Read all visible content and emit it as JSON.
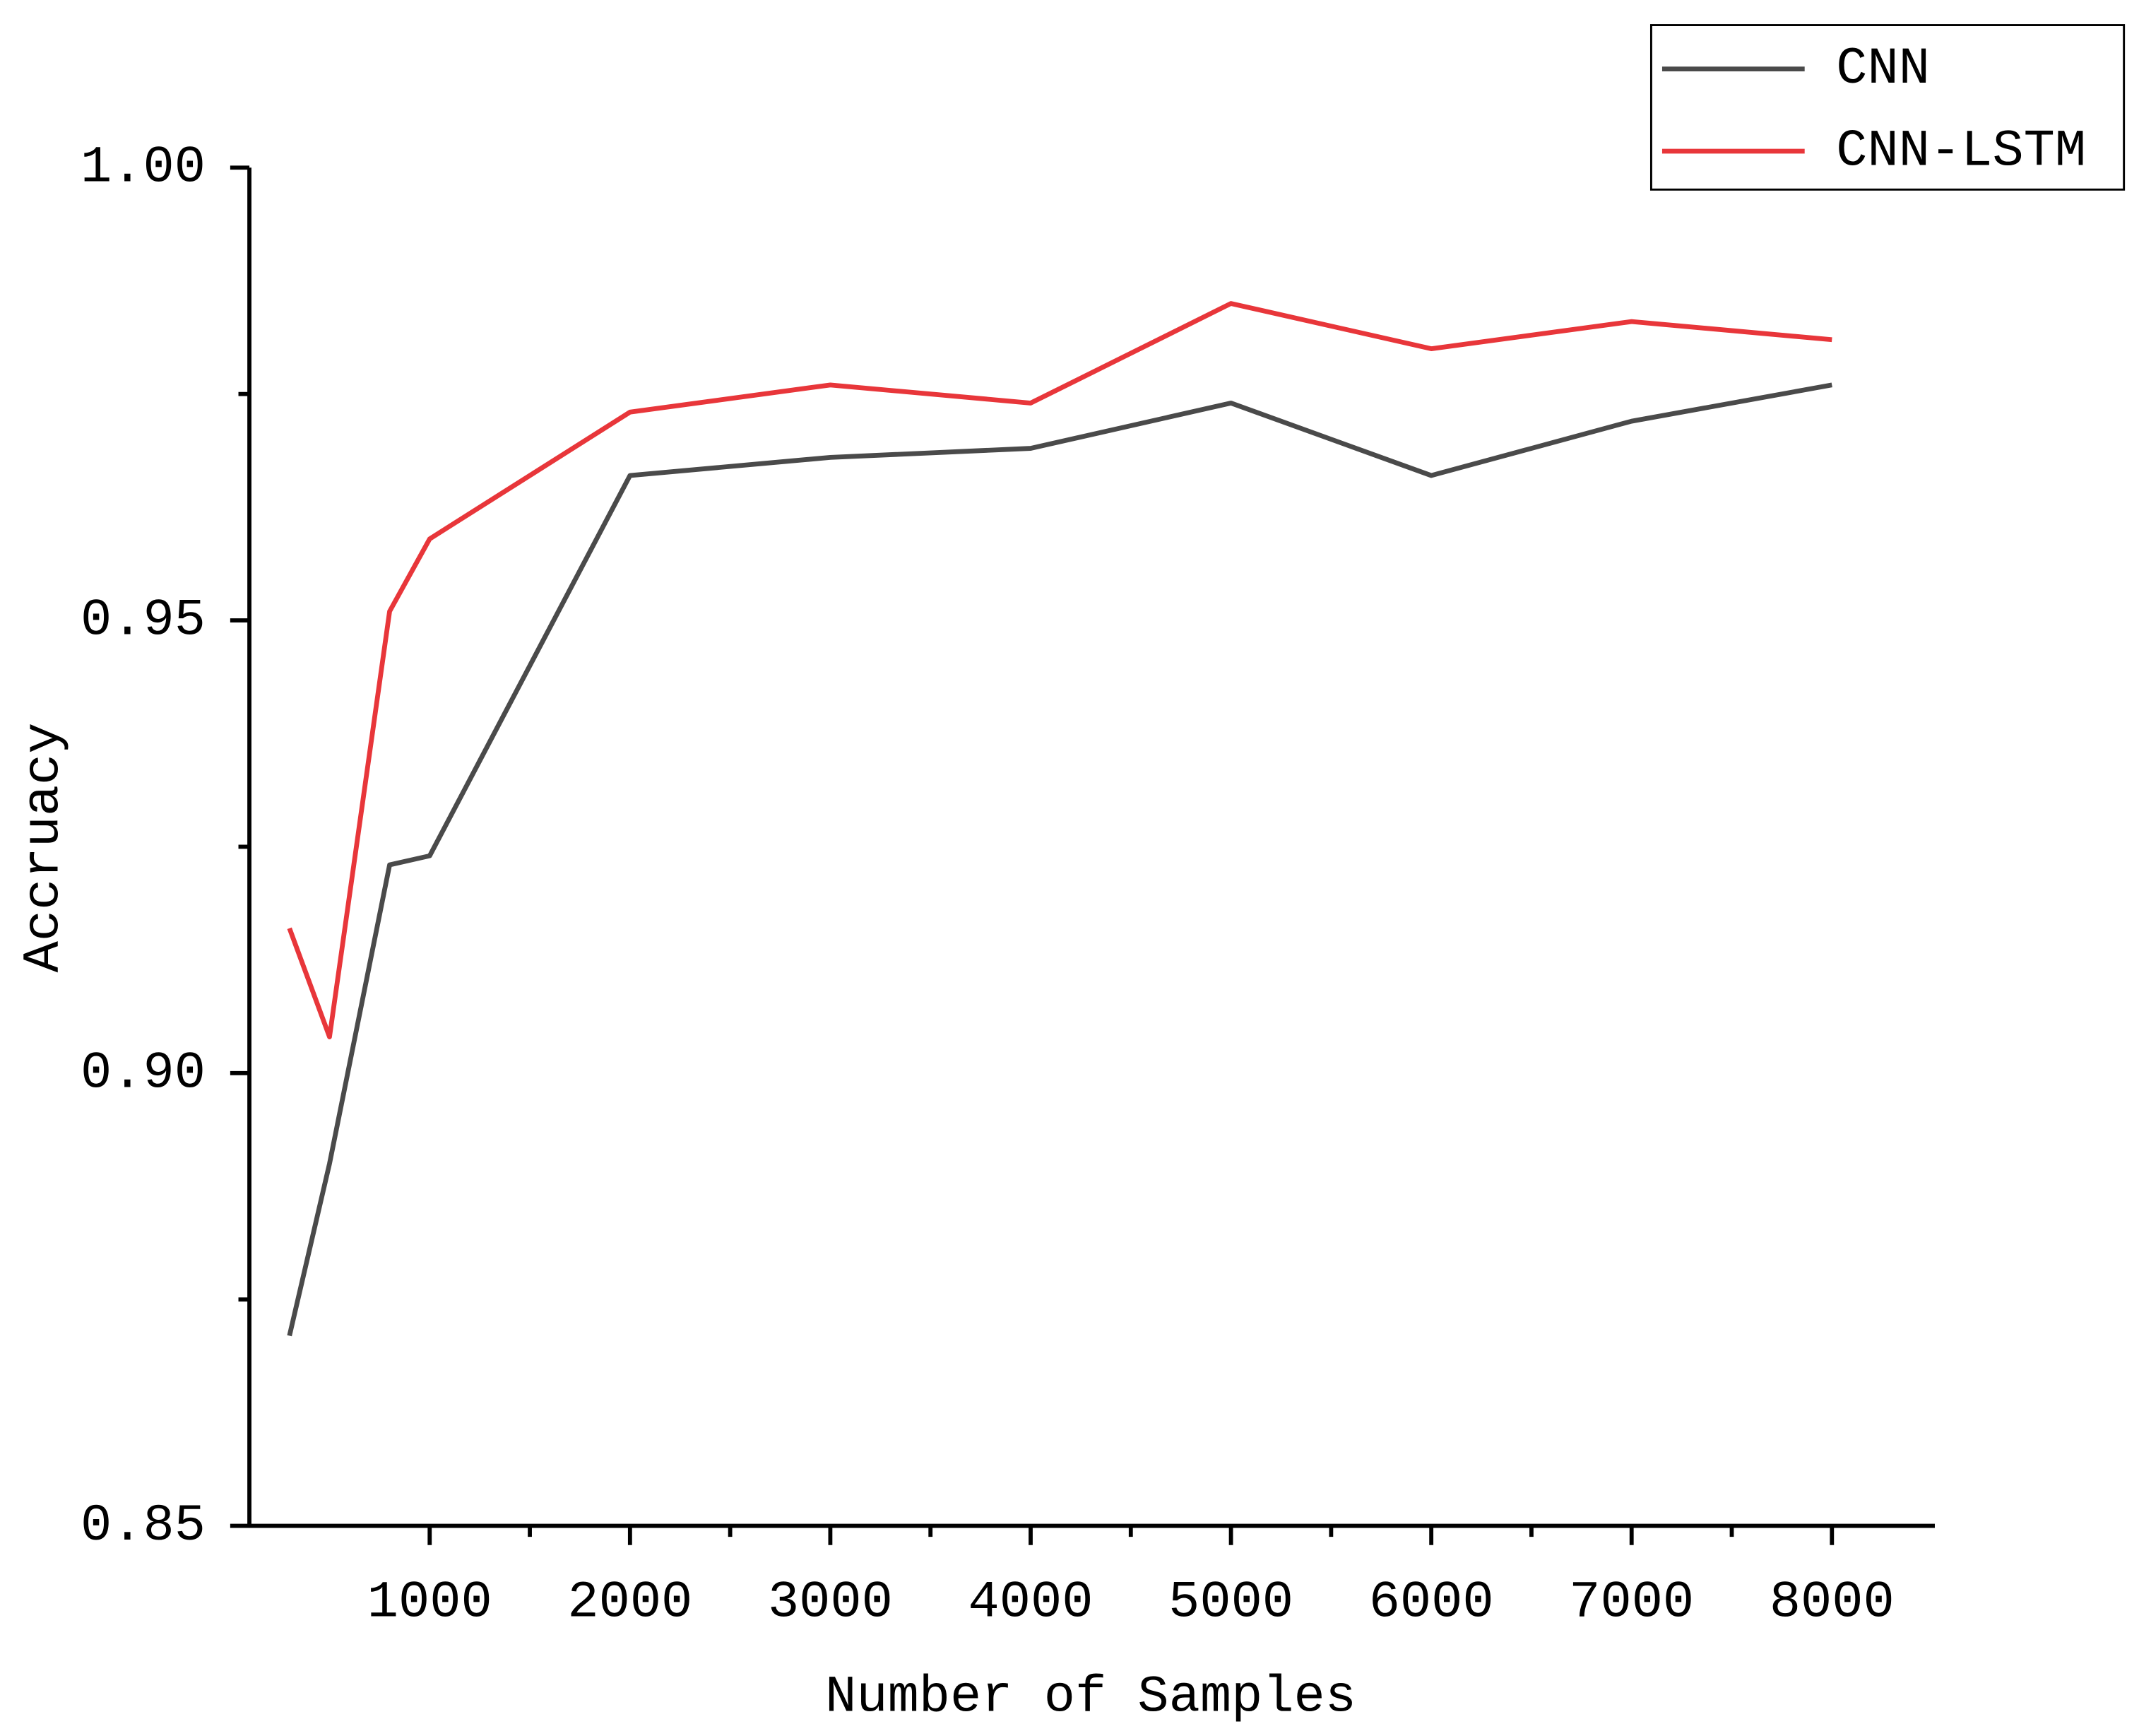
{
  "chart_data": {
    "type": "line",
    "x_label": "Number of Samples",
    "y_label": "Accruacy",
    "x": [
      300,
      500,
      800,
      1000,
      2000,
      3000,
      4000,
      5000,
      6000,
      7000,
      8000
    ],
    "series": [
      {
        "name": "CNN",
        "color": "#4a4a4a",
        "values": [
          0.871,
          0.89,
          0.923,
          0.924,
          0.966,
          0.968,
          0.969,
          0.974,
          0.966,
          0.972,
          0.976
        ]
      },
      {
        "name": "CNN-LSTM",
        "color": "#e8363a",
        "values": [
          0.916,
          0.904,
          0.951,
          0.959,
          0.973,
          0.976,
          0.974,
          0.985,
          0.98,
          0.983,
          0.981
        ]
      }
    ],
    "xlim": [
      100,
      8500
    ],
    "xticks": [
      1000,
      2000,
      3000,
      4000,
      5000,
      6000,
      7000,
      8000
    ],
    "ylim": [
      0.85,
      1.0
    ],
    "yticks": [
      {
        "value": 0.85,
        "label": "0.85"
      },
      {
        "value": 0.9,
        "label": "0.90"
      },
      {
        "value": 0.95,
        "label": "0.95"
      },
      {
        "value": 1.0,
        "label": "1.00"
      }
    ],
    "grid": false,
    "legend": "upper right"
  }
}
